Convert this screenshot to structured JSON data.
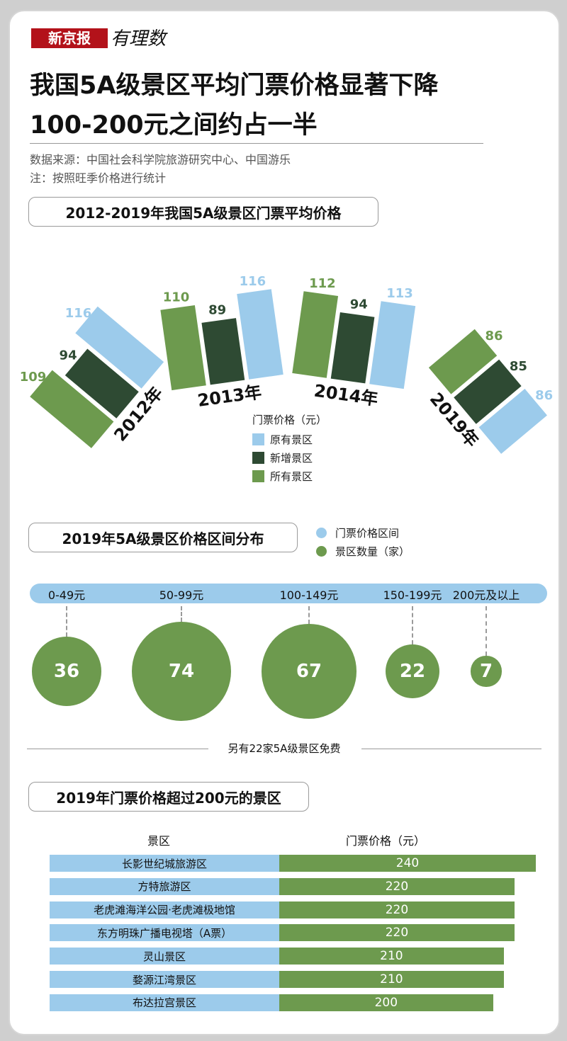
{
  "header": {
    "logo_text": "新京报",
    "logo_script": "有理数",
    "title_line1": "我国5A级景区平均门票价格显著下降",
    "title_line2": "100-200元之间约占一半",
    "source": "数据来源：中国社会科学院旅游研究中心、中国游乐",
    "note": "注：按照旺季价格进行统计"
  },
  "colors": {
    "original": "#9ccbeb",
    "new": "#2e4a33",
    "all": "#6d9a4e",
    "brand": "#b3121a"
  },
  "section1": {
    "title": "2012-2019年我国5A级景区门票平均价格",
    "legend_title": "门票价格（元）",
    "legend": [
      "原有景区",
      "新增景区",
      "所有景区"
    ]
  },
  "section2": {
    "title": "2019年5A级景区价格区间分布",
    "legend": [
      "门票价格区间",
      "景区数量（家）"
    ],
    "free_note": "另有22家5A级景区免费"
  },
  "section3": {
    "title": "2019年门票价格超过200元的景区",
    "col_name": "景区",
    "col_price": "门票价格（元）"
  },
  "chart_data": [
    {
      "type": "bar",
      "title": "2012-2019年我国5A级景区门票平均价格",
      "categories": [
        "2012年",
        "2013年",
        "2014年",
        "2019年"
      ],
      "series": [
        {
          "name": "所有景区",
          "values": [
            109,
            110,
            112,
            86
          ]
        },
        {
          "name": "新增景区",
          "values": [
            94,
            89,
            94,
            85
          ]
        },
        {
          "name": "原有景区",
          "values": [
            116,
            116,
            113,
            86
          ]
        }
      ],
      "ylabel": "门票价格（元）"
    },
    {
      "type": "scatter",
      "title": "2019年5A级景区价格区间分布",
      "categories": [
        "0-49元",
        "50-99元",
        "100-149元",
        "150-199元",
        "200元及以上"
      ],
      "values": [
        36,
        74,
        67,
        22,
        7
      ],
      "ylabel": "景区数量（家）"
    },
    {
      "type": "bar",
      "title": "2019年门票价格超过200元的景区",
      "categories": [
        "长影世纪城旅游区",
        "方特旅游区",
        "老虎滩海洋公园·老虎滩极地馆",
        "东方明珠广播电视塔（A票）",
        "灵山景区",
        "婺源江湾景区",
        "布达拉宫景区"
      ],
      "values": [
        240,
        220,
        220,
        220,
        210,
        210,
        200
      ],
      "ylabel": "门票价格（元）"
    }
  ]
}
